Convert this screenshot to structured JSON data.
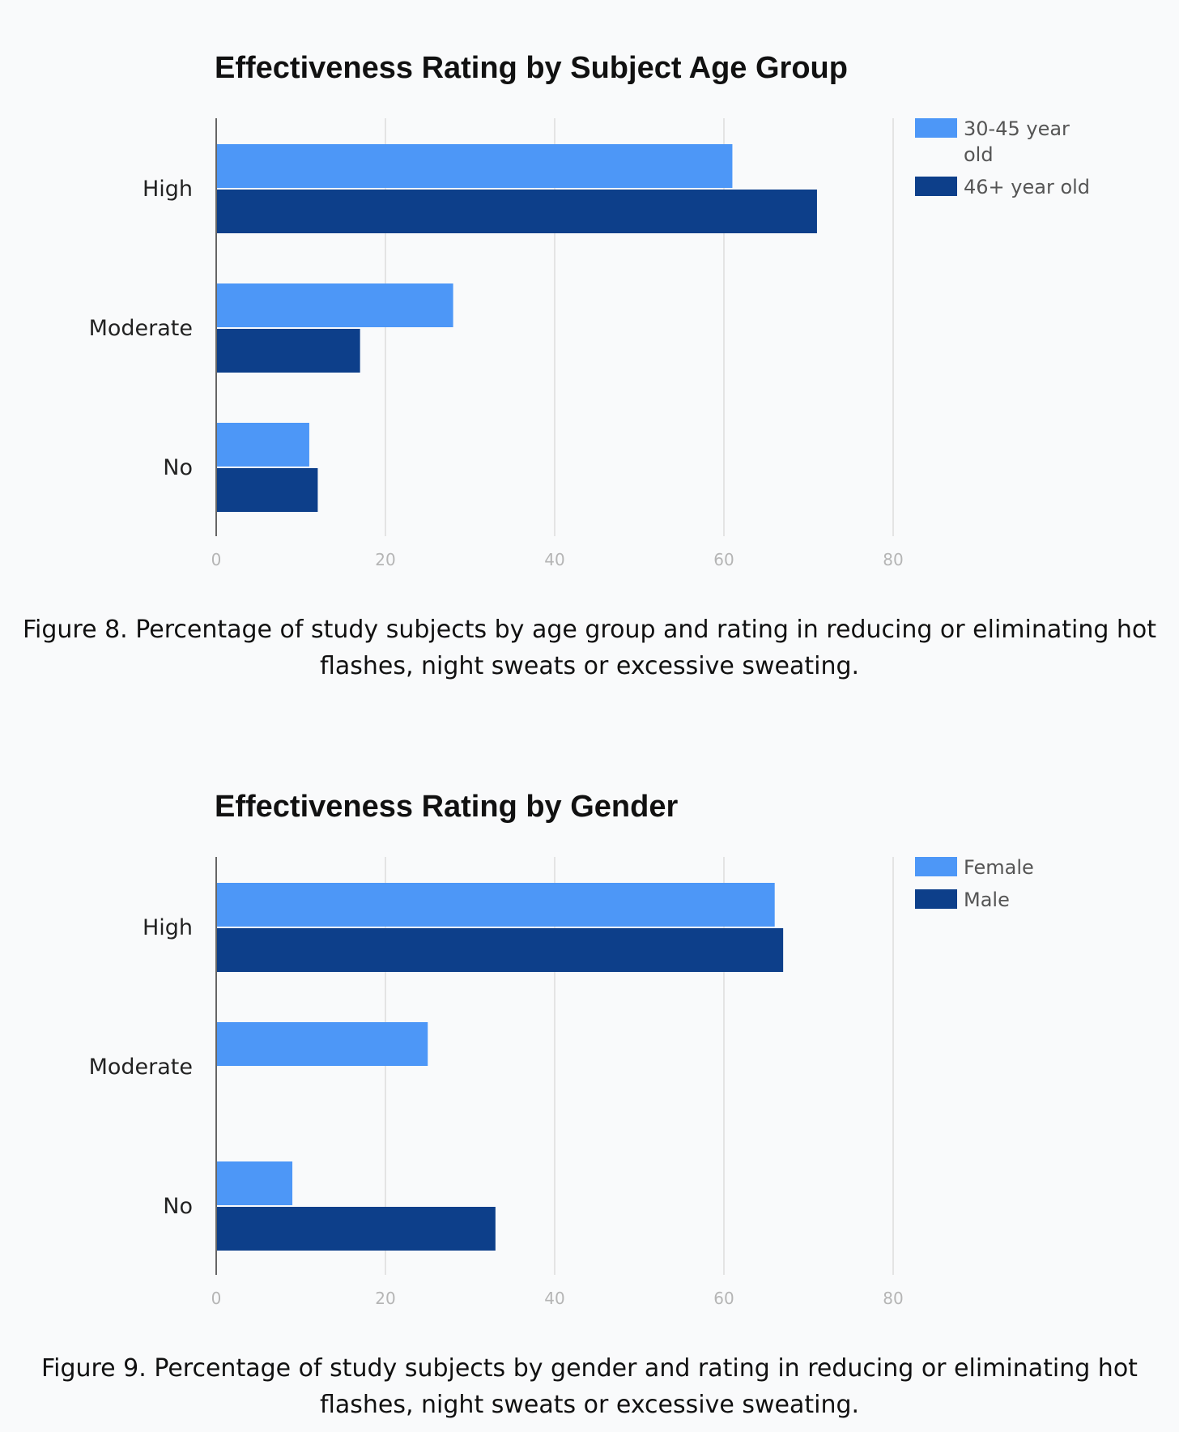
{
  "chart_data": [
    {
      "type": "bar",
      "orientation": "horizontal",
      "title": "Effectiveness Rating by Subject Age Group",
      "categories": [
        "High",
        "Moderate",
        "No"
      ],
      "series": [
        {
          "name": "30-45 year old",
          "legend_lines": [
            "30-45 year",
            "old"
          ],
          "values": [
            61,
            28,
            11
          ],
          "color": "#4d97f7"
        },
        {
          "name": "46+ year old",
          "legend_lines": [
            "46+ year old"
          ],
          "values": [
            71,
            17,
            12
          ],
          "color": "#0d3f8a"
        }
      ],
      "xticks": [
        "0",
        "20",
        "40",
        "60",
        "80"
      ],
      "xlim": [
        0,
        80
      ],
      "grid": true,
      "legend_position": "top-right",
      "caption_lines": [
        "Figure 8. Percentage of study subjects by age group and rating in reducing or eliminating hot",
        "flashes, night sweats or excessive sweating."
      ]
    },
    {
      "type": "bar",
      "orientation": "horizontal",
      "title": "Effectiveness Rating by Gender",
      "categories": [
        "High",
        "Moderate",
        "No"
      ],
      "series": [
        {
          "name": "Female",
          "legend_lines": [
            "Female"
          ],
          "values": [
            66,
            25,
            9
          ],
          "color": "#4d97f7"
        },
        {
          "name": "Male",
          "legend_lines": [
            "Male"
          ],
          "values": [
            67,
            0,
            33
          ],
          "color": "#0d3f8a"
        }
      ],
      "xticks": [
        "0",
        "20",
        "40",
        "60",
        "80"
      ],
      "xlim": [
        0,
        80
      ],
      "grid": true,
      "legend_position": "top-right",
      "caption_lines": [
        "Figure 9. Percentage of study subjects by gender and rating in reducing or eliminating hot",
        "flashes, night sweats or excessive sweating."
      ]
    }
  ]
}
